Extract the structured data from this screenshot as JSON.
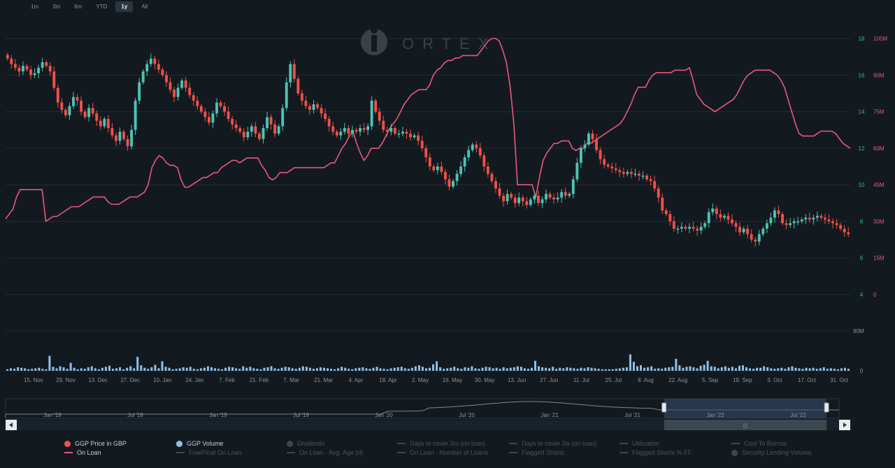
{
  "range_buttons": [
    {
      "label": "1m",
      "active": false
    },
    {
      "label": "3m",
      "active": false
    },
    {
      "label": "6m",
      "active": false
    },
    {
      "label": "YTD",
      "active": false
    },
    {
      "label": "1y",
      "active": true
    },
    {
      "label": "All",
      "active": false
    }
  ],
  "watermark": "ORTEX",
  "colors": {
    "background": "#131a1f",
    "grid": "#232c33",
    "up": "#4cc3b4",
    "down": "#f0504a",
    "on_loan": "#e8587a",
    "volume": "#8fbfe8",
    "price_axis": "#3fb3a6",
    "loan_axis": "#e8587a",
    "navigator_mask": "#3a4f73"
  },
  "chart_data": {
    "type": "line",
    "x_tick_labels": [
      "15. Nov",
      "29. Nov",
      "13. Dec",
      "27. Dec",
      "10. Jan",
      "24. Jan",
      "7. Feb",
      "21. Feb",
      "7. Mar",
      "21. Mar",
      "4. Apr",
      "18. Apr",
      "2. May",
      "16. May",
      "30. May",
      "13. Jun",
      "27. Jun",
      "11. Jul",
      "25. Jul",
      "8. Aug",
      "22. Aug",
      "5. Sep",
      "19. Sep",
      "3. Oct",
      "17. Oct",
      "31. Oct"
    ],
    "price_axis": {
      "ticks": [
        4,
        6,
        8,
        10,
        12,
        14,
        16,
        18
      ],
      "ylim": [
        4,
        18
      ]
    },
    "loan_axis": {
      "ticks": [
        "0",
        "15M",
        "30M",
        "45M",
        "60M",
        "75M",
        "90M",
        "105M"
      ],
      "ylim": [
        0,
        105000000
      ]
    },
    "volume_axis": {
      "ticks": [
        "0",
        "80M"
      ],
      "ylim": [
        0,
        80000000
      ]
    },
    "series": [
      {
        "name": "GGP Price in GBP",
        "type": "candlestick",
        "close": [
          16.9,
          16.6,
          16.4,
          16.2,
          16.5,
          16.3,
          16.0,
          16.1,
          16.4,
          16.7,
          16.5,
          16.2,
          15.3,
          14.5,
          14.1,
          13.8,
          14.3,
          14.8,
          14.6,
          14.0,
          13.7,
          14.2,
          13.9,
          13.5,
          13.2,
          13.6,
          13.1,
          12.7,
          12.4,
          12.9,
          12.5,
          12.1,
          13.0,
          14.6,
          15.6,
          16.2,
          16.6,
          16.9,
          16.6,
          16.3,
          16.0,
          15.6,
          15.2,
          14.8,
          15.3,
          15.7,
          15.3,
          14.9,
          14.6,
          14.3,
          14.0,
          13.7,
          13.4,
          13.9,
          14.5,
          14.3,
          14.0,
          13.6,
          13.3,
          13.1,
          12.9,
          12.6,
          12.9,
          13.2,
          12.8,
          12.5,
          13.1,
          13.7,
          13.3,
          12.8,
          13.2,
          14.2,
          15.6,
          16.6,
          15.8,
          15.0,
          14.6,
          14.3,
          14.1,
          14.4,
          14.2,
          13.9,
          13.6,
          13.2,
          12.9,
          12.7,
          12.9,
          13.1,
          12.8,
          13.0,
          12.9,
          13.1,
          13.0,
          13.2,
          14.6,
          14.0,
          13.5,
          13.0,
          12.9,
          13.1,
          12.8,
          12.8,
          12.9,
          12.8,
          12.6,
          12.7,
          12.4,
          12.0,
          11.5,
          11.0,
          10.8,
          11.0,
          10.7,
          10.3,
          9.9,
          10.2,
          10.6,
          11.0,
          11.5,
          11.9,
          12.2,
          12.0,
          11.6,
          11.0,
          10.6,
          10.2,
          9.8,
          9.4,
          9.1,
          9.5,
          9.3,
          9.0,
          9.3,
          9.1,
          8.9,
          9.2,
          9.4,
          9.0,
          9.2,
          9.5,
          9.3,
          9.2,
          9.3,
          9.6,
          9.4,
          9.5,
          10.3,
          11.2,
          12.0,
          12.2,
          12.8,
          12.5,
          11.9,
          11.4,
          11.1,
          11.0,
          10.9,
          10.8,
          10.7,
          10.6,
          10.7,
          10.6,
          10.6,
          10.5,
          10.5,
          10.3,
          10.2,
          9.8,
          9.3,
          8.6,
          8.4,
          8.0,
          7.6,
          7.6,
          7.7,
          7.6,
          7.7,
          7.6,
          7.5,
          7.7,
          7.9,
          8.5,
          8.7,
          8.4,
          8.2,
          8.3,
          8.1,
          7.9,
          7.7,
          7.4,
          7.6,
          7.3,
          7.0,
          6.9,
          7.3,
          7.6,
          7.9,
          8.2,
          8.6,
          8.4,
          7.9,
          7.8,
          7.9,
          8.0,
          8.0,
          8.1,
          8.2,
          8.1,
          8.2,
          8.3,
          8.2,
          8.1,
          8.0,
          7.9,
          7.8,
          7.6,
          7.4,
          7.3
        ]
      },
      {
        "name": "On Loan",
        "type": "line",
        "values_m": [
          31,
          33,
          35,
          40,
          43,
          43,
          43,
          43,
          43,
          43,
          43,
          30,
          31,
          32,
          32,
          33,
          34,
          35,
          36,
          36,
          36,
          37,
          38,
          39,
          40,
          40,
          40,
          40,
          38,
          37,
          37,
          37,
          38,
          39,
          40,
          40,
          40,
          41,
          42,
          45,
          52,
          55,
          57,
          56,
          54,
          53,
          53,
          52,
          47,
          44,
          44,
          45,
          46,
          47,
          48,
          48,
          49,
          50,
          50,
          52,
          53,
          54,
          55,
          55,
          54,
          55,
          56,
          56,
          56,
          56,
          53,
          51,
          48,
          47,
          48,
          50,
          50,
          50,
          51,
          52,
          52,
          52,
          52,
          52,
          52,
          52,
          52,
          52,
          53,
          54,
          54,
          57,
          60,
          62,
          65,
          67,
          62,
          58,
          55,
          57,
          60,
          60,
          60,
          62,
          65,
          68,
          70,
          72,
          75,
          78,
          80,
          82,
          83,
          84,
          84,
          84,
          86,
          90,
          92,
          93,
          95,
          96,
          96,
          97,
          97,
          98,
          98,
          98,
          98,
          98,
          100,
          102,
          104,
          105,
          105,
          104,
          100,
          95,
          85,
          70,
          45,
          45,
          45,
          45,
          45,
          40,
          48,
          55,
          58,
          60,
          62,
          62,
          63,
          63,
          63,
          60,
          59,
          60,
          60,
          62,
          62,
          63,
          64,
          65,
          66,
          67,
          68,
          69,
          70,
          72,
          75,
          78,
          82,
          85,
          85,
          85,
          88,
          90,
          91,
          91,
          91,
          91,
          91,
          92,
          92,
          92,
          92,
          93,
          88,
          82,
          80,
          78,
          77,
          76,
          75,
          76,
          77,
          78,
          79,
          80,
          82,
          85,
          88,
          90,
          91,
          92,
          92,
          92,
          92,
          92,
          91,
          90,
          88,
          85,
          80,
          75,
          70,
          66,
          65,
          65,
          65,
          65,
          66,
          67,
          67,
          67,
          67,
          66,
          64,
          62,
          61,
          60
        ]
      },
      {
        "name": "GGP Volume",
        "type": "bar",
        "values_m": [
          3,
          5,
          4,
          7,
          6,
          5,
          3,
          4,
          5,
          6,
          4,
          3,
          30,
          8,
          5,
          9,
          7,
          4,
          16,
          6,
          3,
          5,
          4,
          7,
          9,
          5,
          3,
          6,
          8,
          10,
          4,
          5,
          7,
          3,
          6,
          9,
          5,
          28,
          11,
          6,
          4,
          7,
          12,
          5,
          19,
          8,
          6,
          3,
          4,
          5,
          7,
          6,
          8,
          4,
          3,
          5,
          6,
          9,
          7,
          5,
          4,
          3,
          6,
          8,
          7,
          5,
          4,
          9,
          6,
          8,
          5,
          4,
          3,
          6,
          7,
          9,
          5,
          4,
          6,
          8,
          7,
          5,
          4,
          6,
          9,
          8,
          6,
          4,
          5,
          7,
          6,
          5,
          4,
          3,
          5,
          8,
          6,
          4,
          3,
          5,
          6,
          7,
          5,
          4,
          6,
          8,
          5,
          4,
          3,
          5,
          6,
          7,
          8,
          5,
          4,
          6,
          9,
          11,
          8,
          5,
          6,
          13,
          19,
          7,
          4,
          5,
          6,
          8,
          5,
          4,
          7,
          6,
          9,
          5,
          4,
          6,
          8,
          7,
          5,
          6,
          4,
          7,
          5,
          6,
          7,
          9,
          8,
          5,
          4,
          6,
          20,
          9,
          7,
          6,
          5,
          8,
          4,
          6,
          5,
          7,
          6,
          5,
          4,
          6,
          5,
          7,
          6,
          5,
          4,
          3,
          3,
          3,
          3,
          4,
          5,
          6,
          7,
          33,
          18,
          9,
          11,
          6,
          7,
          9,
          4,
          5,
          4,
          6,
          7,
          8,
          24,
          11,
          6,
          8,
          9,
          7,
          5,
          10,
          12,
          20,
          9,
          8,
          5,
          7,
          9,
          6,
          8,
          5,
          10,
          11,
          7,
          5,
          4,
          6,
          6,
          9,
          7,
          5,
          4,
          5,
          6,
          4,
          7,
          9,
          6,
          5,
          4,
          6,
          5,
          6,
          4,
          5,
          7,
          4,
          5,
          4,
          3,
          5,
          6,
          4
        ]
      }
    ]
  },
  "navigator": {
    "labels": [
      "Jan '18",
      "Jul '18",
      "Jan '19",
      "Jul '19",
      "Jan '20",
      "Jul '20",
      "Jan '21",
      "Jul '21",
      "Jan '22",
      "Jul '22"
    ],
    "scroll_left_icon": "chevron-left-icon",
    "scroll_right_icon": "chevron-right-icon",
    "handle_icon": "grip-handle-icon",
    "scrollbar_grip": "|||",
    "selection": [
      0.79,
      0.985
    ]
  },
  "legend": [
    {
      "label": "GGP Price in GBP",
      "marker": "dot",
      "color": "#f0504a",
      "on": true
    },
    {
      "label": "GGP Volume",
      "marker": "dot",
      "color": "#8fbfe8",
      "on": true
    },
    {
      "label": "Dividends",
      "marker": "dot",
      "color": "#3e474d",
      "on": false
    },
    {
      "label": "Days to cover 3m (on loan)",
      "marker": "line",
      "color": "#3e474d",
      "on": false
    },
    {
      "label": "Days to cover 2w (on loan)",
      "marker": "line",
      "color": "#3e474d",
      "on": false
    },
    {
      "label": "Utilization",
      "marker": "line",
      "color": "#3e474d",
      "on": false
    },
    {
      "label": "Cost To Borrow",
      "marker": "line",
      "color": "#3e474d",
      "on": false
    },
    {
      "label": "On Loan",
      "marker": "line",
      "color": "#e8587a",
      "on": true
    },
    {
      "label": "FreeFloat On Loan",
      "marker": "line",
      "color": "#3e474d",
      "on": false
    },
    {
      "label": "On Loan - Avg. Age (d)",
      "marker": "line",
      "color": "#3e474d",
      "on": false
    },
    {
      "label": "On Loan - Number of Loans",
      "marker": "line",
      "color": "#3e474d",
      "on": false
    },
    {
      "label": "Flagged Shorts",
      "marker": "line",
      "color": "#3e474d",
      "on": false
    },
    {
      "label": "Flagged Shorts % FF",
      "marker": "line",
      "color": "#3e474d",
      "on": false
    },
    {
      "label": "Security Lending Volume",
      "marker": "dot",
      "color": "#3e474d",
      "on": false
    }
  ]
}
